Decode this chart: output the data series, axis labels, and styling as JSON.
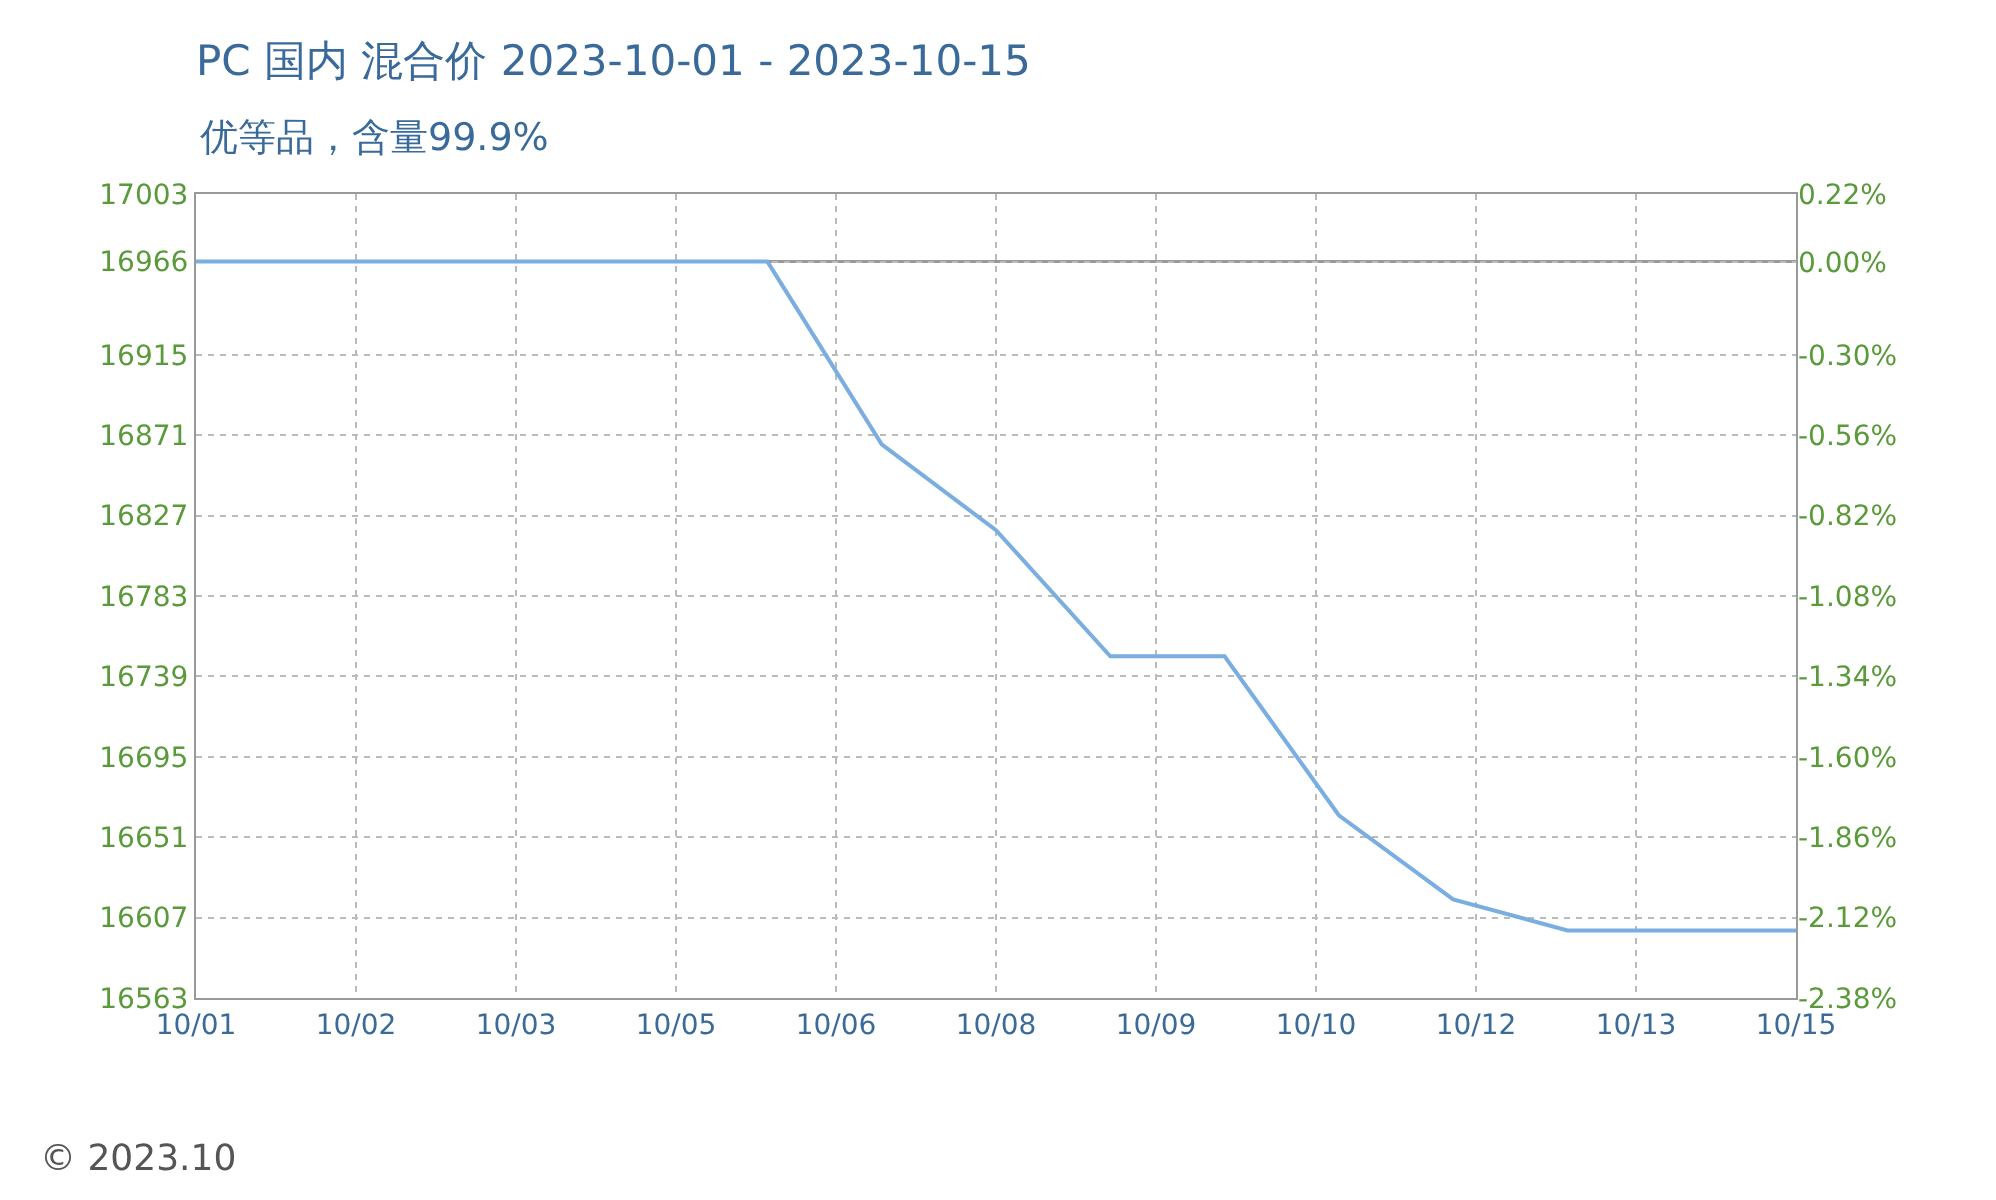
{
  "chart_data": {
    "type": "line",
    "title": "PC 国内 混合价 2023-10-01 - 2023-10-15",
    "subtitle": "优等品，含量99.9%",
    "x": [
      "2023-10-01",
      "2023-10-02",
      "2023-10-03",
      "2023-10-04",
      "2023-10-05",
      "2023-10-06",
      "2023-10-07",
      "2023-10-08",
      "2023-10-09",
      "2023-10-10",
      "2023-10-11",
      "2023-10-12",
      "2023-10-13",
      "2023-10-14",
      "2023-10-15"
    ],
    "series": [
      {
        "color": "#7aaee0",
        "values": [
          16966,
          16966,
          16966,
          16966,
          16966,
          16966,
          16866,
          16819,
          16750,
          16750,
          16663,
          16617,
          16600,
          16600,
          16600
        ]
      }
    ],
    "xlim": [
      "2023-10-01",
      "2023-10-15"
    ],
    "xticks": [
      {
        "value": "2023-10-01",
        "label": "10/01"
      },
      {
        "value": "2023-10-02T09:36",
        "label": "10/02"
      },
      {
        "value": "2023-10-03T19:12",
        "label": "10/03"
      },
      {
        "value": "2023-10-05T04:48",
        "label": "10/05"
      },
      {
        "value": "2023-10-06T14:24",
        "label": "10/06"
      },
      {
        "value": "2023-10-08",
        "label": "10/08"
      },
      {
        "value": "2023-10-09T09:36",
        "label": "10/09"
      },
      {
        "value": "2023-10-10T19:12",
        "label": "10/10"
      },
      {
        "value": "2023-10-12T04:48",
        "label": "10/12"
      },
      {
        "value": "2023-10-13T14:24",
        "label": "10/13"
      },
      {
        "value": "2023-10-15",
        "label": "10/15"
      }
    ],
    "ylim": [
      16563,
      17003
    ],
    "yticks": [
      17003,
      16966,
      16915,
      16871,
      16827,
      16783,
      16739,
      16695,
      16651,
      16607,
      16563
    ],
    "y2lim": [
      -2.38,
      0.22
    ],
    "y2ticks": [
      {
        "value": 0.22,
        "label": "0.22%"
      },
      {
        "value": 0,
        "label": "0.00%"
      },
      {
        "value": -0.3,
        "label": "-0.30%"
      },
      {
        "value": -0.56,
        "label": "-0.56%"
      },
      {
        "value": -0.82,
        "label": "-0.82%"
      },
      {
        "value": -1.08,
        "label": "-1.08%"
      },
      {
        "value": -1.34,
        "label": "-1.34%"
      },
      {
        "value": -1.6,
        "label": "-1.60%"
      },
      {
        "value": -1.86,
        "label": "-1.86%"
      },
      {
        "value": -2.12,
        "label": "-2.12%"
      },
      {
        "value": -2.38,
        "label": "-2.38%"
      }
    ],
    "ref_lines": [
      {
        "axis": "y",
        "value": 16966,
        "color": "#999999"
      }
    ],
    "grid": true,
    "marker": "none",
    "line_style": "solid",
    "annotations": [
      "© 2023.10"
    ]
  }
}
